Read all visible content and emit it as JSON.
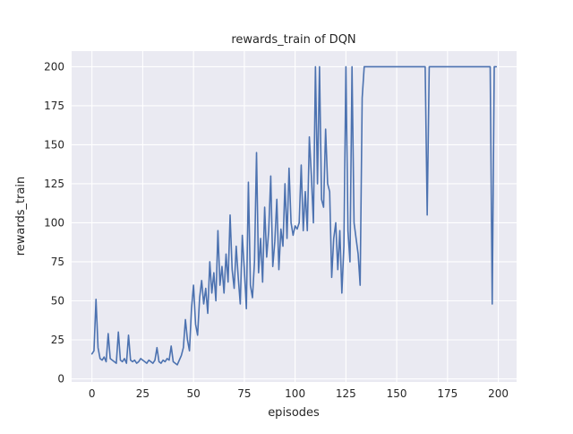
{
  "figure": {
    "kind": "matplotlib-seaborn-figure"
  },
  "chart_data": {
    "type": "line",
    "title": "rewards_train of DQN",
    "xlabel": "episodes",
    "ylabel": "rewards_train",
    "xlim": [
      -10,
      209
    ],
    "ylim": [
      -2,
      210
    ],
    "xticks": [
      0,
      25,
      50,
      75,
      100,
      125,
      150,
      175,
      200
    ],
    "yticks": [
      0,
      25,
      50,
      75,
      100,
      125,
      150,
      175,
      200
    ],
    "grid": true,
    "legend": "none",
    "line_color": "#4c72b0",
    "background": "#eaeaf2",
    "grid_color": "#ffffff",
    "series": [
      {
        "name": "rewards_train",
        "values": [
          16,
          18,
          51,
          20,
          13,
          12,
          14,
          11,
          29,
          13,
          12,
          11,
          10,
          30,
          12,
          11,
          13,
          10,
          28,
          12,
          11,
          12,
          10,
          11,
          13,
          12,
          11,
          10,
          12,
          11,
          10,
          12,
          20,
          11,
          10,
          12,
          11,
          13,
          12,
          21,
          11,
          10,
          9,
          12,
          15,
          20,
          38,
          25,
          18,
          45,
          60,
          35,
          28,
          52,
          63,
          48,
          58,
          42,
          75,
          55,
          68,
          50,
          95,
          60,
          72,
          55,
          80,
          62,
          105,
          70,
          58,
          85,
          65,
          48,
          92,
          70,
          45,
          126,
          60,
          52,
          75,
          145,
          68,
          90,
          62,
          110,
          78,
          95,
          130,
          72,
          88,
          115,
          70,
          96,
          85,
          125,
          90,
          135,
          100,
          92,
          98,
          96,
          100,
          137,
          95,
          120,
          95,
          155,
          130,
          100,
          200,
          125,
          200,
          115,
          110,
          160,
          125,
          120,
          65,
          90,
          100,
          70,
          95,
          55,
          85,
          200,
          95,
          75,
          200,
          100,
          90,
          80,
          60,
          180,
          200,
          200,
          200,
          200,
          200,
          200,
          200,
          200,
          200,
          200,
          200,
          200,
          200,
          200,
          200,
          200,
          200,
          200,
          200,
          200,
          200,
          200,
          200,
          200,
          200,
          200,
          200,
          200,
          200,
          200,
          200,
          105,
          200,
          200,
          200,
          200,
          200,
          200,
          200,
          200,
          200,
          200,
          200,
          200,
          200,
          200,
          200,
          200,
          200,
          200,
          200,
          200,
          200,
          200,
          200,
          200,
          200,
          200,
          200,
          200,
          200,
          200,
          200,
          48,
          200,
          200
        ]
      }
    ]
  }
}
